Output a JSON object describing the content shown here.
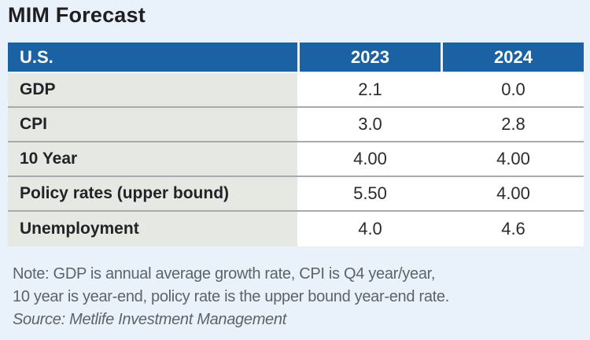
{
  "title": "MIM Forecast",
  "table": {
    "header": {
      "region": "U.S.",
      "y2023": "2023",
      "y2024": "2024"
    },
    "rows": [
      {
        "label": "GDP",
        "v2023": "2.1",
        "v2024": "0.0"
      },
      {
        "label": "CPI",
        "v2023": "3.0",
        "v2024": "2.8"
      },
      {
        "label": "10 Year",
        "v2023": "4.00",
        "v2024": "4.00"
      },
      {
        "label": "Policy rates (upper bound)",
        "v2023": "5.50",
        "v2024": "4.00"
      },
      {
        "label": "Unemployment",
        "v2023": "4.0",
        "v2024": "4.6"
      }
    ]
  },
  "footnote": {
    "note_line1": "Note: GDP is annual average growth rate, CPI is Q4 year/year,",
    "note_line2": "10 year is year-end, policy rate is the upper bound year-end rate.",
    "source": "Source: Metlife Investment Management"
  },
  "colors": {
    "page_bg": "#e9f1fa",
    "header_blue": "#1a62a4",
    "header_text": "#ffffff",
    "label_column_bg": "#e6e8e3",
    "row_separator": "#a6abae",
    "body_text": "#232327",
    "note_text": "#5e6368"
  },
  "chart_data": {
    "type": "table",
    "title": "MIM Forecast",
    "columns": [
      "U.S.",
      "2023",
      "2024"
    ],
    "rows": [
      [
        "GDP",
        2.1,
        0.0
      ],
      [
        "CPI",
        3.0,
        2.8
      ],
      [
        "10 Year",
        4.0,
        4.0
      ],
      [
        "Policy rates (upper bound)",
        5.5,
        4.0
      ],
      [
        "Unemployment",
        4.0,
        4.6
      ]
    ],
    "note": "Note: GDP is annual average growth rate, CPI is Q4 year/year, 10 year is year-end, policy rate is the upper bound year-end rate.",
    "source": "Source: Metlife Investment Management"
  }
}
